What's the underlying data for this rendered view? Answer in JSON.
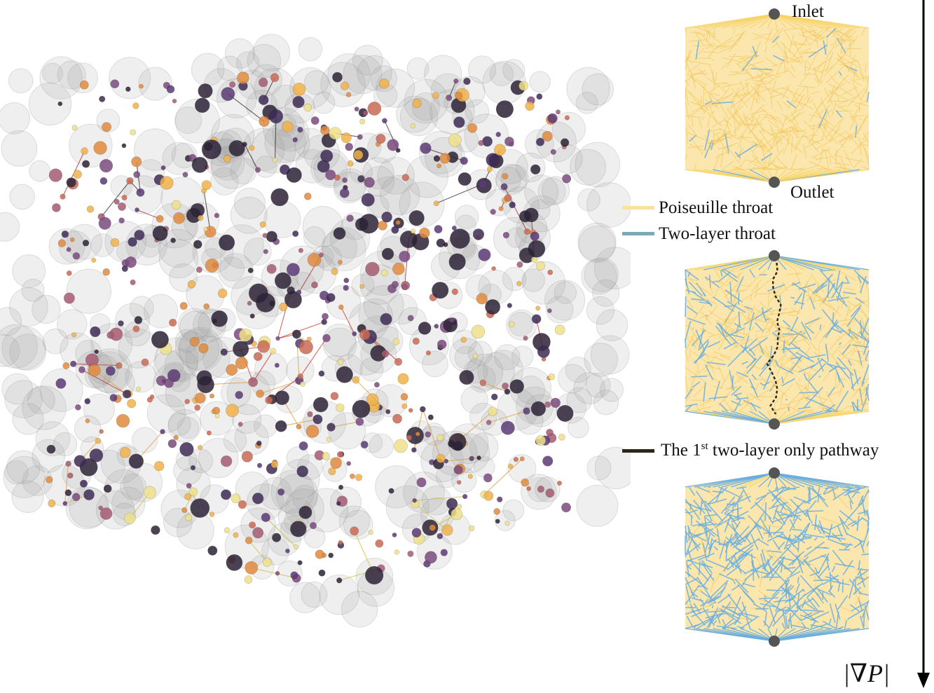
{
  "labels": {
    "inlet": "Inlet",
    "outlet": "Outlet",
    "gradient": "|∇P|"
  },
  "legend": [
    {
      "id": "poiseuille",
      "label": "Poiseuille throat",
      "color": "#fbe29a"
    },
    {
      "id": "two_layer",
      "label": "Two-layer throat",
      "color": "#7aa9b8"
    },
    {
      "id": "pathway",
      "label_prefix": "The 1",
      "label_sup": "st",
      "label_suffix": " two-layer only pathway",
      "color": "#2e2718"
    }
  ],
  "colors": {
    "poiseuille": "#f8d46a",
    "two_layer": "#6aaedf",
    "node_gray": "#555555",
    "pore_palette": [
      "#2b2236",
      "#3d2a55",
      "#5b3a77",
      "#7a4a7e",
      "#a45a72",
      "#c96a55",
      "#e08a3c",
      "#f0b24a",
      "#efe08a"
    ],
    "throat_palette": [
      "#3a2a2a",
      "#a03030",
      "#c8352a",
      "#d8a040",
      "#c8c040"
    ]
  },
  "panels": [
    {
      "id": "panel-top",
      "two_layer_fraction": 0.05
    },
    {
      "id": "panel-middle",
      "two_layer_fraction": 0.45
    },
    {
      "id": "panel-bottom",
      "two_layer_fraction": 0.9
    }
  ]
}
